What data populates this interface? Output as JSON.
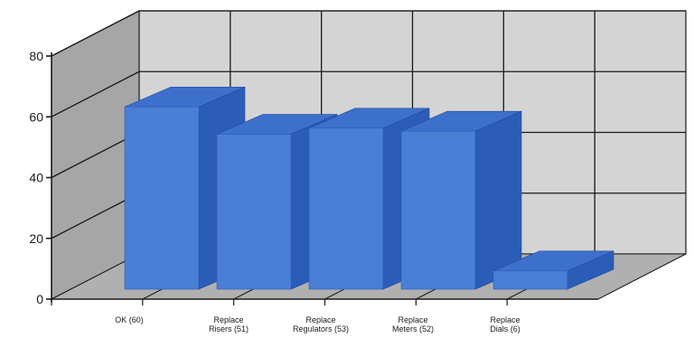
{
  "chart_data": {
    "type": "bar",
    "categories": [
      [
        "OK (60)"
      ],
      [
        "Replace",
        "Risers (51)"
      ],
      [
        "Replace",
        "Regulators (53)"
      ],
      [
        "Replace",
        "Meters (52)"
      ],
      [
        "Replace",
        "Dials (6)"
      ]
    ],
    "values": [
      60,
      51,
      53,
      52,
      6
    ],
    "ylim": [
      0,
      80
    ],
    "yticks": [
      0,
      20,
      40,
      60,
      80
    ],
    "grid": true,
    "legend": "none",
    "style": "3d",
    "colors": {
      "bar_front": "#4a7fd6",
      "bar_side": "#2b5db8",
      "bar_top": "#3d70cc",
      "wall_back": "#d4d4d4",
      "wall_left": "#a6a6a6",
      "floor": "#b0b0b0",
      "grid_line": "#1a1a1a"
    }
  }
}
